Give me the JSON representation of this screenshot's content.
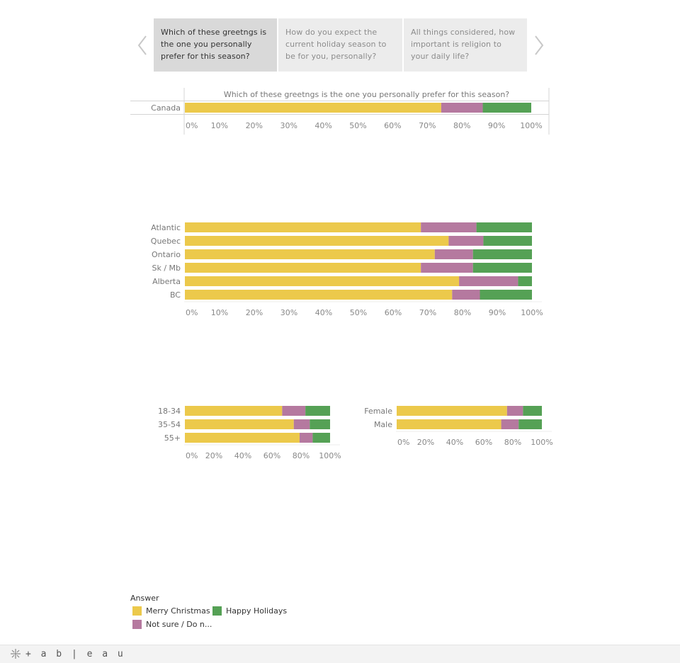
{
  "story": {
    "tabs": [
      {
        "label": "Which of these greetngs is the one you personally prefer for this season?",
        "active": true
      },
      {
        "label": "How do you expect the current holiday season to be for you, personally?",
        "active": false
      },
      {
        "label": "All things considered, how important is religion to your daily life?",
        "active": false
      }
    ],
    "prev_icon": "chevron-left-icon",
    "next_icon": "chevron-right-icon"
  },
  "colors": {
    "merry_christmas": "#ecc94b",
    "not_sure": "#b5799f",
    "happy_holidays": "#55a155"
  },
  "chart_data": [
    {
      "type": "bar",
      "stacked": "100%",
      "orientation": "horizontal",
      "title": "Which of these greetngs is the one you personally prefer for this season?",
      "categories": [
        "Canada"
      ],
      "series": [
        {
          "name": "Merry Christmas",
          "values": [
            74
          ]
        },
        {
          "name": "Not sure / Do n...",
          "values": [
            12
          ]
        },
        {
          "name": "Happy Holidays",
          "values": [
            14
          ]
        }
      ],
      "xlim": [
        0,
        100
      ],
      "ticks": [
        "0%",
        "10%",
        "20%",
        "30%",
        "40%",
        "50%",
        "60%",
        "70%",
        "80%",
        "90%",
        "100%"
      ]
    },
    {
      "type": "bar",
      "stacked": "100%",
      "orientation": "horizontal",
      "categories": [
        "Atlantic",
        "Quebec",
        "Ontario",
        "Sk / Mb",
        "Alberta",
        "BC"
      ],
      "series": [
        {
          "name": "Merry Christmas",
          "values": [
            68,
            76,
            72,
            68,
            79,
            77
          ]
        },
        {
          "name": "Not sure / Do n...",
          "values": [
            16,
            10,
            11,
            15,
            17,
            8
          ]
        },
        {
          "name": "Happy Holidays",
          "values": [
            16,
            14,
            17,
            17,
            4,
            15
          ]
        }
      ],
      "xlim": [
        0,
        100
      ],
      "ticks": [
        "0%",
        "10%",
        "20%",
        "30%",
        "40%",
        "50%",
        "60%",
        "70%",
        "80%",
        "90%",
        "100%"
      ]
    },
    {
      "type": "bar",
      "stacked": "100%",
      "orientation": "horizontal",
      "categories": [
        "18-34",
        "35-54",
        "55+"
      ],
      "series": [
        {
          "name": "Merry Christmas",
          "values": [
            67,
            75,
            79
          ]
        },
        {
          "name": "Not sure / Do n...",
          "values": [
            16,
            11,
            9
          ]
        },
        {
          "name": "Happy Holidays",
          "values": [
            17,
            14,
            12
          ]
        }
      ],
      "xlim": [
        0,
        100
      ],
      "ticks": [
        "0%",
        "20%",
        "40%",
        "60%",
        "80%",
        "100%"
      ]
    },
    {
      "type": "bar",
      "stacked": "100%",
      "orientation": "horizontal",
      "categories": [
        "Female",
        "Male"
      ],
      "series": [
        {
          "name": "Merry Christmas",
          "values": [
            76,
            72
          ]
        },
        {
          "name": "Not sure / Do n...",
          "values": [
            11,
            12
          ]
        },
        {
          "name": "Happy Holidays",
          "values": [
            13,
            16
          ]
        }
      ],
      "xlim": [
        0,
        100
      ],
      "ticks": [
        "0%",
        "20%",
        "40%",
        "60%",
        "80%",
        "100%"
      ]
    }
  ],
  "legend": {
    "title": "Answer",
    "items": [
      {
        "label": "Merry Christmas",
        "color_key": "merry_christmas"
      },
      {
        "label": "Happy Holidays",
        "color_key": "happy_holidays"
      },
      {
        "label": "Not sure / Do n...",
        "color_key": "not_sure"
      }
    ]
  },
  "footer": {
    "logo_text": "+ a b | e a u",
    "logo_icon": "tableau-logo-icon"
  }
}
